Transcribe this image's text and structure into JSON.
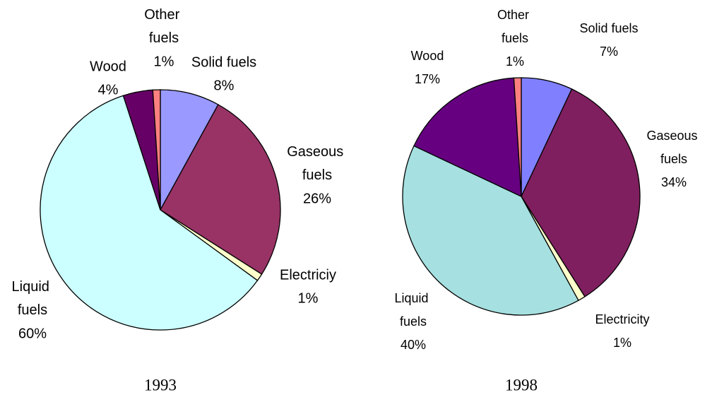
{
  "chart_data": [
    {
      "type": "pie",
      "title": "1993",
      "categories": [
        "Solid fuels",
        "Gaseous fuels",
        "Electriciy",
        "Liquid fuels",
        "Wood",
        "Other fuels"
      ],
      "values": [
        8,
        26,
        1,
        60,
        4,
        1
      ],
      "value_labels": [
        "8%",
        "26%",
        "1%",
        "60%",
        "4%",
        "1%"
      ],
      "colors": [
        "#9999ff",
        "#993366",
        "#ffffcc",
        "#ccffff",
        "#660066",
        "#ff8080"
      ]
    },
    {
      "type": "pie",
      "title": "1998",
      "categories": [
        "Solid fuels",
        "Gaseous fuels",
        "Electricity",
        "Liquid fuels",
        "Wood",
        "Other fuels"
      ],
      "values": [
        7,
        34,
        1,
        40,
        17,
        1
      ],
      "value_labels": [
        "7%",
        "34%",
        "1%",
        "40%",
        "17%",
        "1%"
      ],
      "colors": [
        "#8080ff",
        "#7f1f5f",
        "#ffffcc",
        "#a6e0e0",
        "#660080",
        "#ff8080"
      ]
    }
  ]
}
